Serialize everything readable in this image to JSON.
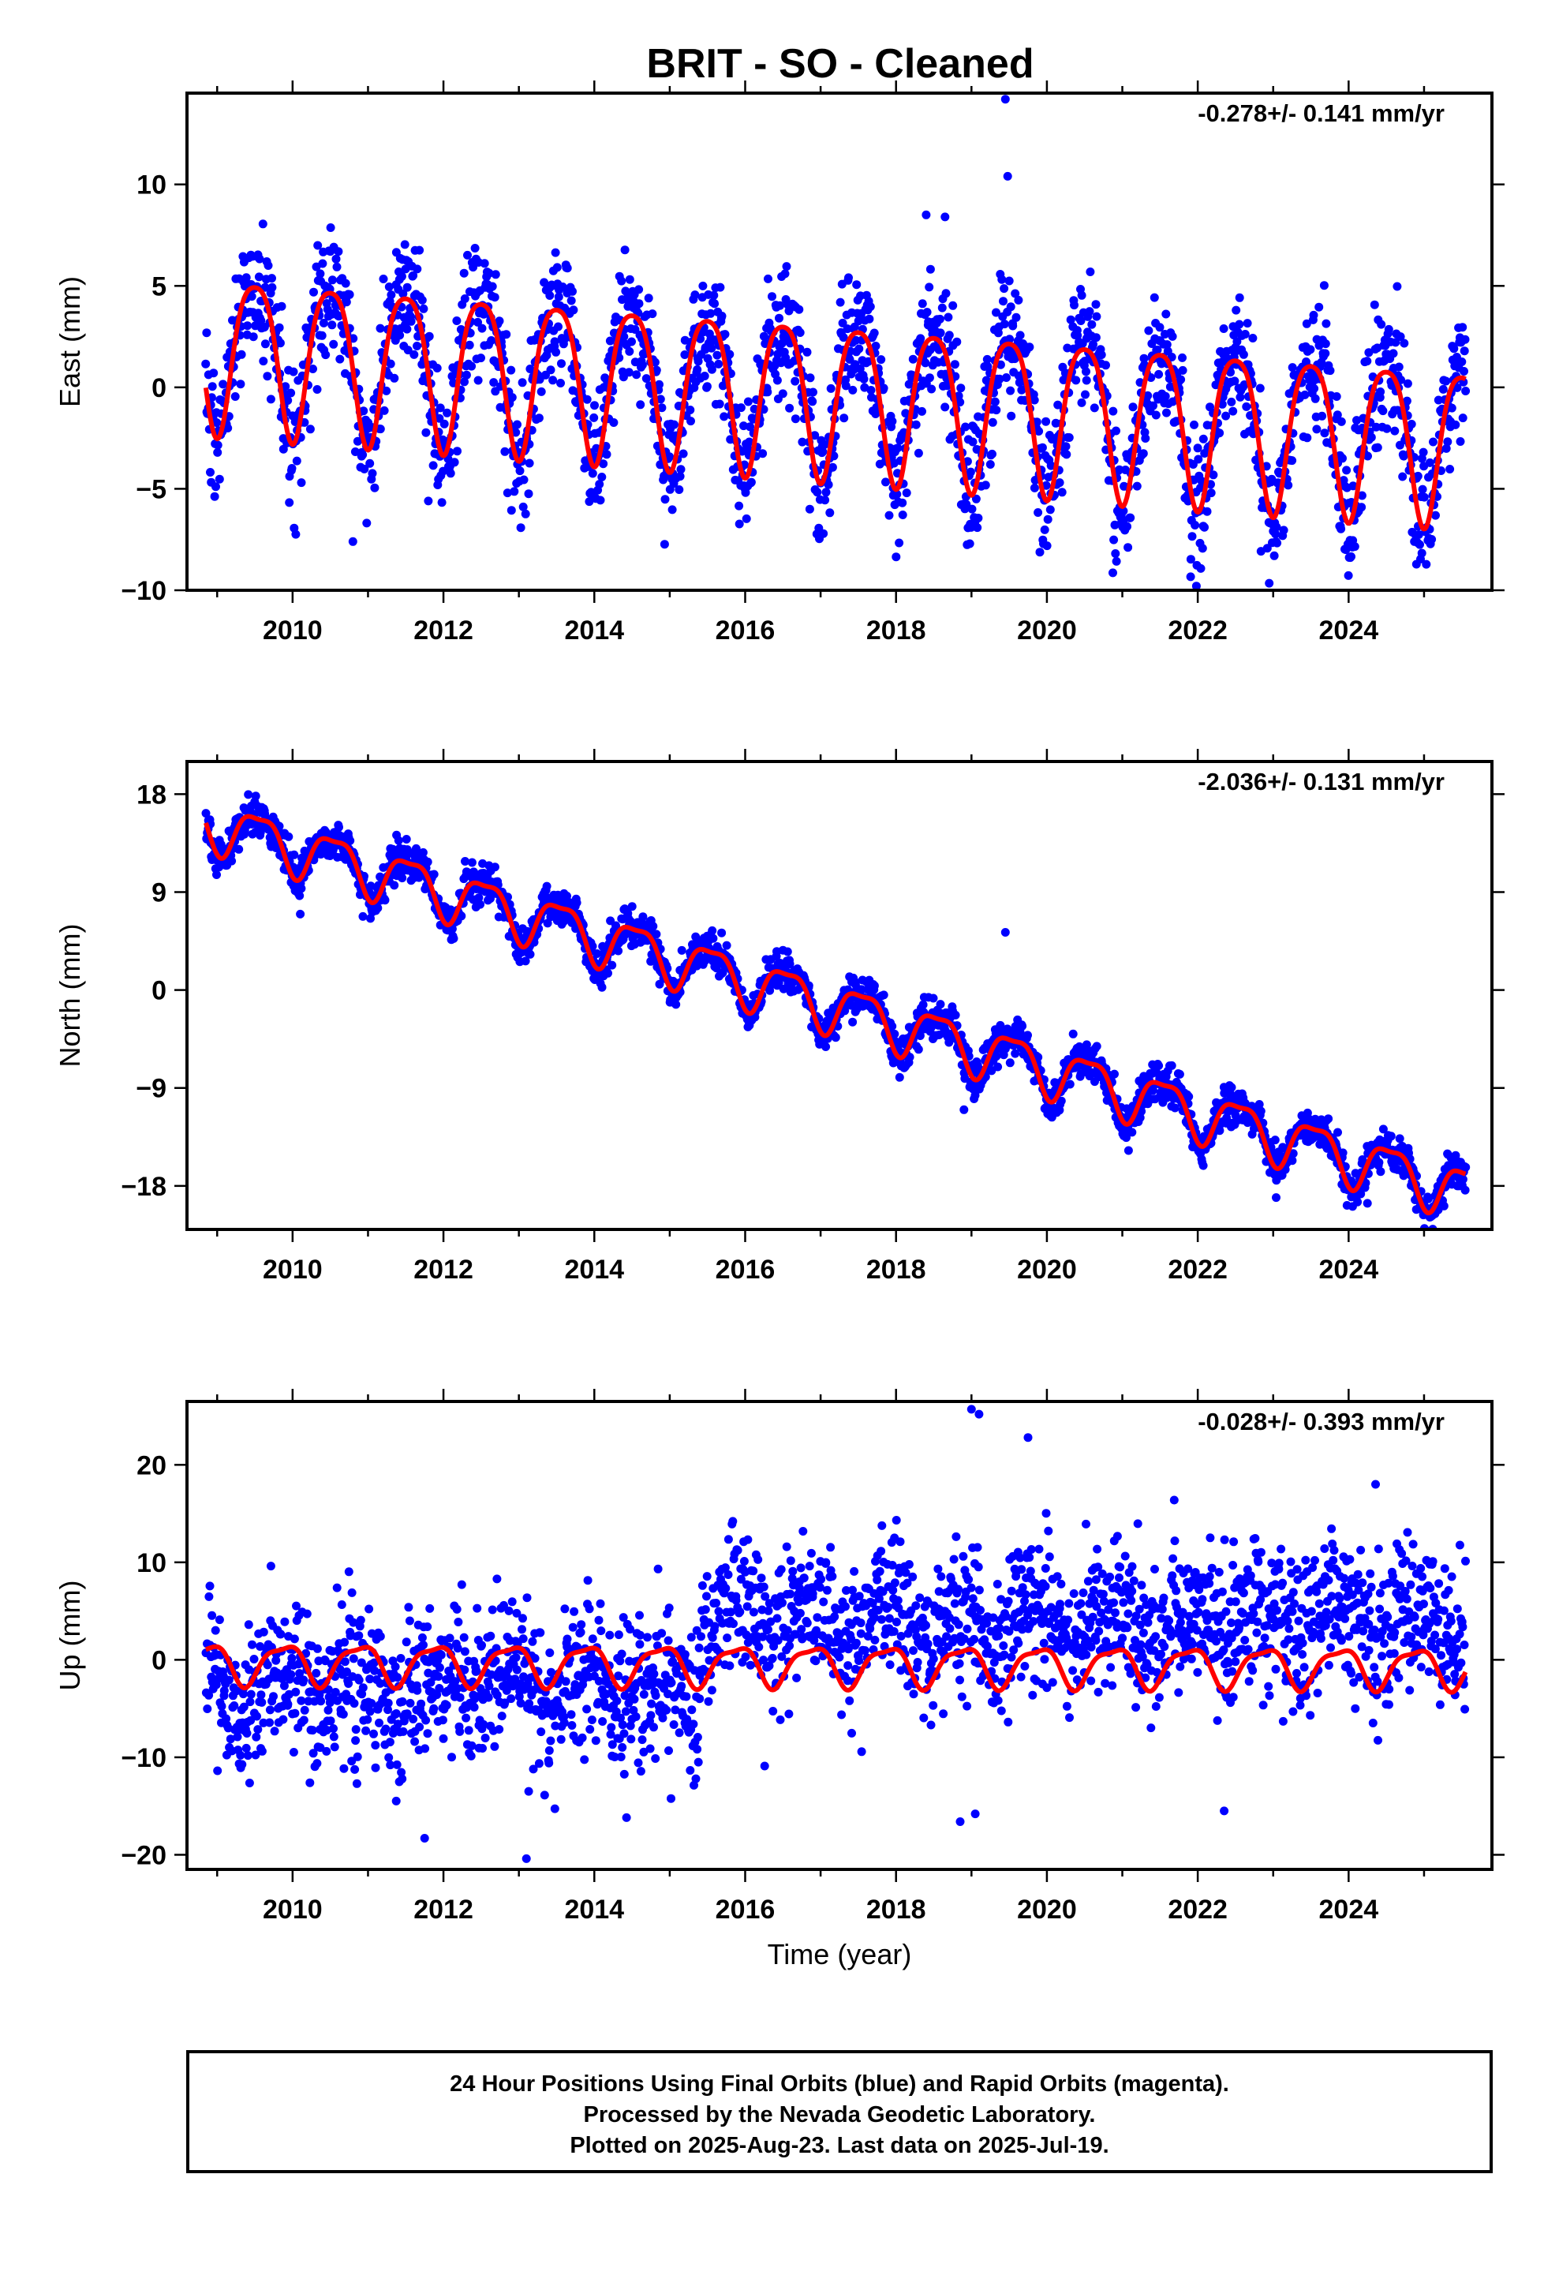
{
  "figure": {
    "title": "BRIT  - SO - Cleaned",
    "footer": {
      "lines": [
        "24 Hour Positions Using Final Orbits (blue) and Rapid Orbits (magenta).",
        "Processed by the Nevada Geodetic Laboratory.",
        "Plotted on 2025-Aug-23. Last data on 2025-Jul-19."
      ]
    },
    "colors": {
      "data_points": "#0000ff",
      "model_curve": "#ff0000",
      "frame": "#000000"
    }
  },
  "chart_data": [
    {
      "type": "scatter",
      "component": "East",
      "ylabel": "East (mm)",
      "xlabel": "",
      "rate_text": "-0.278+/- 0.141 mm/yr",
      "xlim": [
        2008.6,
        2025.9
      ],
      "ylim": [
        -10,
        14.5
      ],
      "xticks": [
        2010,
        2012,
        2014,
        2016,
        2018,
        2020,
        2022,
        2024
      ],
      "xtick_labels": [
        "2010",
        "2012",
        "2014",
        "2016",
        "2018",
        "2020",
        "2022",
        "2024"
      ],
      "yticks": [
        -10,
        -5,
        0,
        5,
        10
      ],
      "ytick_labels": [
        "−10",
        "−5",
        "0",
        "5",
        "10"
      ],
      "data_start": 2008.85,
      "data_end": 2025.55,
      "model": {
        "offset_mm": 2.0,
        "rate_mm_per_yr": -0.278,
        "rate_reference_year": 2008.85,
        "annual_amplitude_mm": 3.8,
        "annual_peak_year_fraction": 0.5,
        "semiannual_amplitude_mm": 0.7,
        "semiannual_phase": 0.25
      },
      "scatter_sigma_mm": 1.6,
      "outliers": [
        [
          2019.45,
          14.2
        ],
        [
          2019.48,
          10.4
        ],
        [
          2018.4,
          8.5
        ],
        [
          2018.65,
          8.4
        ],
        [
          2010.8,
          -7.6
        ],
        [
          2012.85,
          -5.2
        ],
        [
          2011.8,
          -5.6
        ]
      ],
      "series": [
        {
          "name": "",
          "color": "#0000ff",
          "kind": "points"
        },
        {
          "name": "",
          "color": "#ff0000",
          "kind": "model"
        }
      ]
    },
    {
      "type": "scatter",
      "component": "North",
      "ylabel": "North (mm)",
      "xlabel": "",
      "rate_text": "-2.036+/- 0.131 mm/yr",
      "xlim": [
        2008.6,
        2025.9
      ],
      "ylim": [
        -22,
        21
      ],
      "xticks": [
        2010,
        2012,
        2014,
        2016,
        2018,
        2020,
        2022,
        2024
      ],
      "xtick_labels": [
        "2010",
        "2012",
        "2014",
        "2016",
        "2018",
        "2020",
        "2022",
        "2024"
      ],
      "yticks": [
        -18,
        -9,
        0,
        9,
        18
      ],
      "ytick_labels": [
        "−18",
        "−9",
        "0",
        "9",
        "18"
      ],
      "data_start": 2008.85,
      "data_end": 2025.55,
      "model": {
        "offset_mm": 15.5,
        "rate_mm_per_yr": -2.036,
        "rate_reference_year": 2008.85,
        "annual_amplitude_mm": 2.3,
        "annual_peak_year_fraction": 0.55,
        "semiannual_amplitude_mm": 0.7,
        "semiannual_phase": 0.3
      },
      "scatter_sigma_mm": 0.9,
      "outliers": [
        [
          2019.45,
          5.3
        ],
        [
          2009.1,
          11.5
        ],
        [
          2018.9,
          -11.0
        ],
        [
          2024.25,
          -19.6
        ]
      ],
      "series": [
        {
          "name": "",
          "color": "#0000ff",
          "kind": "points"
        },
        {
          "name": "",
          "color": "#ff0000",
          "kind": "model"
        }
      ]
    },
    {
      "type": "scatter",
      "component": "Up",
      "ylabel": "Up (mm)",
      "xlabel": "Time (year)",
      "rate_text": "-0.028+/- 0.393 mm/yr",
      "xlim": [
        2008.6,
        2025.9
      ],
      "ylim": [
        -21.5,
        26.5
      ],
      "xticks": [
        2010,
        2012,
        2014,
        2016,
        2018,
        2020,
        2022,
        2024
      ],
      "xtick_labels": [
        "2010",
        "2012",
        "2014",
        "2016",
        "2018",
        "2020",
        "2022",
        "2024"
      ],
      "yticks": [
        -20,
        -10,
        0,
        10,
        20
      ],
      "ytick_labels": [
        "−20",
        "−10",
        "0",
        "10",
        "20"
      ],
      "data_start": 2008.85,
      "data_end": 2025.55,
      "model": {
        "offset_mm": -0.3,
        "rate_mm_per_yr": -0.028,
        "rate_reference_year": 2008.85,
        "annual_amplitude_mm": 2.0,
        "annual_peak_year_fraction": 0.88,
        "semiannual_amplitude_mm": 0.6,
        "semiannual_phase": 0.1
      },
      "scatter_sigma_mm": 3.8,
      "outliers": [
        [
          2019.0,
          25.7
        ],
        [
          2019.1,
          25.2
        ],
        [
          2019.75,
          22.8
        ],
        [
          2013.1,
          -20.4
        ],
        [
          2011.75,
          -18.3
        ],
        [
          2018.85,
          -16.6
        ],
        [
          2022.35,
          -15.5
        ],
        [
          2019.05,
          -15.8
        ]
      ],
      "series": [
        {
          "name": "",
          "color": "#0000ff",
          "kind": "points"
        },
        {
          "name": "",
          "color": "#ff0000",
          "kind": "model"
        }
      ]
    }
  ]
}
